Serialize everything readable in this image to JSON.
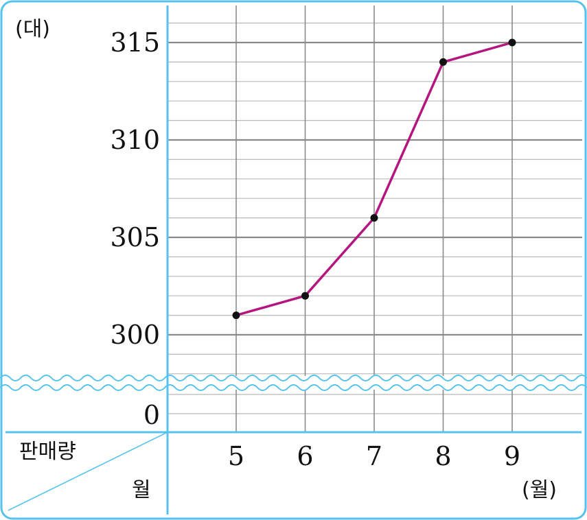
{
  "chart_data": {
    "type": "line",
    "categories": [
      "5",
      "6",
      "7",
      "8",
      "9"
    ],
    "values": [
      301,
      302,
      306,
      314,
      315
    ],
    "y_unit_label": "(대)",
    "x_unit_label": "(월)",
    "corner_header": {
      "top": "판매량",
      "bottom": "월"
    },
    "y_ticks": [
      315,
      310,
      305,
      300
    ],
    "y_zero_label": "0",
    "ylim": [
      297,
      317
    ],
    "axis_break": true,
    "grid": true,
    "colors": {
      "line": "#b5157e",
      "point": "#111111",
      "frame": "#55c3ee",
      "grid_major": "#8a8a8a",
      "grid_minor": "#b8b8b8"
    }
  }
}
